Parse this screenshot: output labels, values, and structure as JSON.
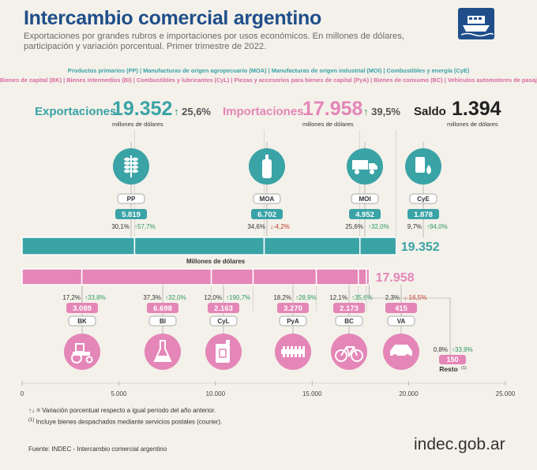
{
  "header": {
    "title": "Intercambio comercial argentino",
    "subtitle_1": "Exportaciones por grandes rubros e importaciones por usos económicos. En millones de dólares,",
    "subtitle_2": "participación y variación porcentual. Primer trimestre de 2022."
  },
  "legend": {
    "exports_line": "Productos primarios (PP)  |  Manufacturas de origen agropecuario (MOA)  |  Manufacturas de origen industrial (MOI)  |  Combustibles y energía (CyE)",
    "imports_line": "Bienes de capital (BK)  |  Bienes intermedios (BI)  |  Combustibles y lubricantes (CyL)  |  Piezas y accesorios para bienes de capital (PyA)  |  Bienes de consumo (BC)  |  Vehículos automotores de pasajeros (VA)"
  },
  "summary": {
    "exports_label": "Exportaciones",
    "exports_value": "19.352",
    "exports_var": "25,6%",
    "exports_unit": "millones de dólares",
    "imports_label": "Importaciones",
    "imports_value": "17.958",
    "imports_var": "39,5%",
    "imports_unit": "millones de dólares",
    "balance_label": "Saldo",
    "balance_value": "1.394",
    "balance_unit": "millones de dólares"
  },
  "chart_data": {
    "type": "bar",
    "orientation": "horizontal-stacked",
    "axis_label": "Millones de dólares",
    "xlim": [
      0,
      25000
    ],
    "ticks": [
      "0",
      "5.000",
      "10.000",
      "15.000",
      "20.000",
      "25.000"
    ],
    "tick_values": [
      0,
      5000,
      10000,
      15000,
      20000,
      25000
    ],
    "exports": {
      "total_label": "19.352",
      "total": 19352,
      "color": "#3aa3a6",
      "segments": [
        {
          "code": "PP",
          "value": 5819,
          "value_label": "5.819",
          "share": "30,1%",
          "var": "57,7%",
          "dir": "up",
          "icon": "wheat-icon"
        },
        {
          "code": "MOA",
          "value": 6702,
          "value_label": "6.702",
          "share": "34,6%",
          "var": "-4,2%",
          "dir": "down",
          "icon": "bottle-icon"
        },
        {
          "code": "MOI",
          "value": 4952,
          "value_label": "4.952",
          "share": "25,6%",
          "var": "32,0%",
          "dir": "up",
          "icon": "truck-icon"
        },
        {
          "code": "CyE",
          "value": 1878,
          "value_label": "1.878",
          "share": "9,7%",
          "var": "94,0%",
          "dir": "up",
          "icon": "oil-barrel-icon"
        }
      ]
    },
    "imports": {
      "total_label": "17.958",
      "total": 17958,
      "color": "#e486b7",
      "segments": [
        {
          "code": "BK",
          "value": 3089,
          "value_label": "3.089",
          "share": "17,2%",
          "var": "33,8%",
          "dir": "up",
          "icon": "tractor-icon"
        },
        {
          "code": "BI",
          "value": 6698,
          "value_label": "6.698",
          "share": "37,3%",
          "var": "32,0%",
          "dir": "up",
          "icon": "flask-icon"
        },
        {
          "code": "CyL",
          "value": 2163,
          "value_label": "2.163",
          "share": "12,0%",
          "var": "190,7%",
          "dir": "up",
          "icon": "jerrycan-icon"
        },
        {
          "code": "PyA",
          "value": 3270,
          "value_label": "3.270",
          "share": "18,2%",
          "var": "28,9%",
          "dir": "up",
          "icon": "gear-part-icon"
        },
        {
          "code": "BC",
          "value": 2173,
          "value_label": "2.173",
          "share": "12,1%",
          "var": "35,6%",
          "dir": "up",
          "icon": "bicycle-icon"
        },
        {
          "code": "VA",
          "value": 415,
          "value_label": "415",
          "share": "2,3%",
          "var": "-16,5%",
          "dir": "down",
          "icon": "car-icon"
        },
        {
          "code": "Resto",
          "value": 150,
          "value_label": "150",
          "share": "0,8%",
          "var": "33,9%",
          "dir": "up",
          "icon": ""
        }
      ]
    }
  },
  "resto_sup": "(1)",
  "notes": {
    "arrows_note": "Variación porcentual respecto a igual período del año anterior.",
    "footnote_mark": "(1)",
    "footnote": "Incluye bienes despachados mediante servicios postales (courier).",
    "source": "Fuente: INDEC  - Intercambio comercial argentino",
    "logo_text": "indec.gob.ar"
  },
  "colors": {
    "teal": "#3aa3a6",
    "pink": "#e486b7",
    "title_blue": "#1f4e8a"
  }
}
